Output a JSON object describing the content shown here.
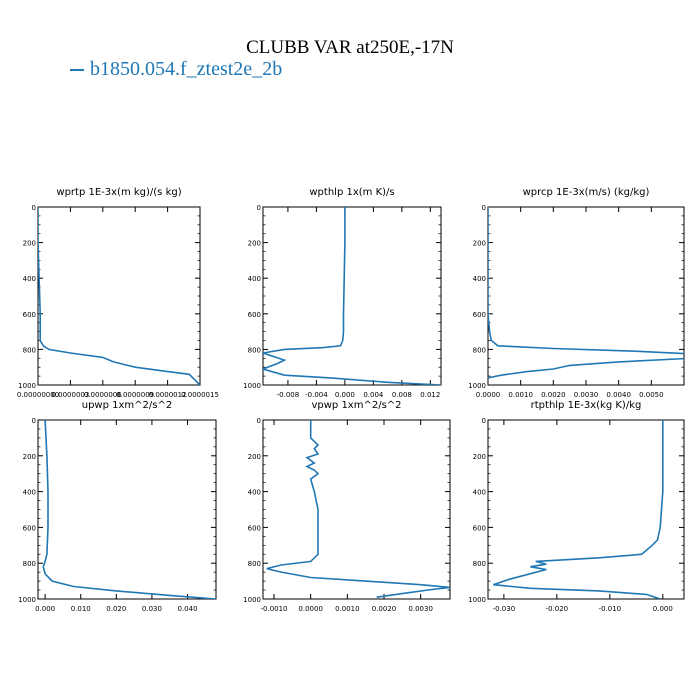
{
  "figure": {
    "title": "CLUBB VAR at250E,-17N",
    "legend_label": "b1850.054.f_ztest2e_2b",
    "series_color": "#1f77b4"
  },
  "chart_data": [
    {
      "type": "line",
      "title": "wprtp  1E-3x(m kg)/(s kg)",
      "xlim": [
        0.0,
        1.5e-06
      ],
      "ylim": [
        1000,
        0
      ],
      "yticks": [
        0,
        200,
        400,
        600,
        800,
        1000
      ],
      "xtick_labels": [
        {
          "x": 0.0,
          "label": "0.00000000"
        },
        {
          "x": 3e-07,
          "label": "0.0000003"
        },
        {
          "x": 6e-07,
          "label": "0.0000006"
        },
        {
          "x": 9e-07,
          "label": "0.0000009"
        },
        {
          "x": 1.2e-06,
          "label": "0.0000012"
        },
        {
          "x": 1.5e-06,
          "label": "0.0000015"
        }
      ],
      "series": [
        {
          "x": [
            0.0,
            0.0,
            2e-08,
            2e-08,
            5e-08,
            1e-07,
            3e-07,
            6e-07,
            7e-07,
            9e-07,
            1.2e-06,
            1.4e-06,
            1.5e-06
          ],
          "y": [
            0,
            200,
            600,
            750,
            780,
            800,
            820,
            845,
            870,
            900,
            925,
            940,
            1000
          ]
        }
      ]
    },
    {
      "type": "line",
      "title": "wpthlp  1x(m K)/s",
      "xlim": [
        -0.0115,
        0.0135
      ],
      "ylim": [
        1000,
        0
      ],
      "yticks": [
        0,
        200,
        400,
        600,
        800,
        1000
      ],
      "xtick_labels": [
        {
          "x": -0.008,
          "label": "-0.008"
        },
        {
          "x": -0.004,
          "label": "-0.004"
        },
        {
          "x": 0.0,
          "label": "0.000"
        },
        {
          "x": 0.004,
          "label": "0.004"
        },
        {
          "x": 0.008,
          "label": "0.008"
        },
        {
          "x": 0.012,
          "label": "0.012"
        }
      ],
      "series": [
        {
          "x": [
            0.0,
            0.0,
            -0.0001,
            -0.0002,
            -0.0002,
            -0.0003,
            -0.0006,
            -0.003,
            -0.0085,
            -0.0115,
            -0.0085,
            -0.0095,
            -0.0115,
            -0.0085,
            -0.002,
            0.006,
            0.0135
          ],
          "y": [
            0,
            200,
            400,
            600,
            700,
            750,
            780,
            790,
            800,
            820,
            860,
            880,
            910,
            945,
            960,
            985,
            1000
          ]
        }
      ]
    },
    {
      "type": "line",
      "title": "wprcp  1E-3x(m/s) (kg/kg)",
      "xlim": [
        0.0,
        0.006
      ],
      "ylim": [
        1000,
        0
      ],
      "yticks": [
        0,
        200,
        400,
        600,
        800,
        1000
      ],
      "xtick_labels": [
        {
          "x": 0.0,
          "label": "0.0000"
        },
        {
          "x": 0.001,
          "label": "0.0010"
        },
        {
          "x": 0.002,
          "label": "0.0020"
        },
        {
          "x": 0.003,
          "label": "0.0030"
        },
        {
          "x": 0.004,
          "label": "0.0040"
        },
        {
          "x": 0.005,
          "label": "0.0050"
        }
      ],
      "series": [
        {
          "x": [
            0.0,
            0.0,
            5e-05,
            0.0001,
            0.0003,
            0.002,
            0.0045,
            0.0062,
            0.0062,
            0.004,
            0.0025,
            0.002,
            0.0012,
            0.0004,
            0.0
          ],
          "y": [
            0,
            600,
            700,
            750,
            780,
            795,
            810,
            825,
            850,
            870,
            890,
            910,
            925,
            945,
            960
          ]
        }
      ]
    },
    {
      "type": "line",
      "title": "upwp  1xm^2/s^2",
      "xlim": [
        -0.002,
        0.048
      ],
      "ylim": [
        1000,
        0
      ],
      "yticks": [
        0,
        200,
        400,
        600,
        800,
        1000
      ],
      "xtick_labels": [
        {
          "x": 0.0,
          "label": "0.000"
        },
        {
          "x": 0.01,
          "label": "0.010"
        },
        {
          "x": 0.02,
          "label": "0.020"
        },
        {
          "x": 0.03,
          "label": "0.030"
        },
        {
          "x": 0.04,
          "label": "0.040"
        }
      ],
      "series": [
        {
          "x": [
            0.0,
            0.0005,
            0.0008,
            0.0008,
            0.0005,
            0.0,
            -0.0005,
            0.0,
            0.002,
            0.008,
            0.02,
            0.035,
            0.048
          ],
          "y": [
            0,
            200,
            400,
            600,
            750,
            790,
            820,
            860,
            900,
            930,
            955,
            980,
            1000
          ]
        }
      ]
    },
    {
      "type": "line",
      "title": "vpwp  1xm^2/s^2",
      "xlim": [
        -0.0013,
        0.0038
      ],
      "ylim": [
        1000,
        0
      ],
      "yticks": [
        0,
        200,
        400,
        600,
        800,
        1000
      ],
      "xtick_labels": [
        {
          "x": -0.001,
          "label": "-0.0010"
        },
        {
          "x": 0.0,
          "label": "0.0000"
        },
        {
          "x": 0.001,
          "label": "0.0010"
        },
        {
          "x": 0.002,
          "label": "0.0020"
        },
        {
          "x": 0.003,
          "label": "0.0030"
        }
      ],
      "series": [
        {
          "x": [
            0.0,
            0.0,
            0.0002,
            0.0001,
            0.0002,
            -0.0001,
            0.0001,
            -0.0001,
            0.0001,
            0.0002,
            0.0,
            0.0001,
            0.0002,
            0.0002,
            0.0002,
            0.0,
            -0.0008,
            -0.0012,
            -0.0008,
            0.0,
            0.0015,
            0.003,
            0.0038,
            0.0032,
            0.0025,
            0.0018
          ],
          "y": [
            0,
            100,
            140,
            160,
            190,
            210,
            240,
            260,
            280,
            300,
            330,
            400,
            500,
            600,
            750,
            790,
            810,
            830,
            850,
            880,
            900,
            920,
            935,
            950,
            970,
            990
          ]
        }
      ]
    },
    {
      "type": "line",
      "title": "rtpthlp  1E-3x(kg K)/kg",
      "xlim": [
        -0.033,
        0.004
      ],
      "ylim": [
        1000,
        0
      ],
      "yticks": [
        0,
        200,
        400,
        600,
        800,
        1000
      ],
      "xtick_labels": [
        {
          "x": -0.03,
          "label": "-0.030"
        },
        {
          "x": -0.02,
          "label": "-0.020"
        },
        {
          "x": -0.01,
          "label": "-0.010"
        },
        {
          "x": 0.0,
          "label": "0.000"
        }
      ],
      "series": [
        {
          "x": [
            0.0,
            0.0,
            -0.0005,
            -0.001,
            -0.002,
            -0.004,
            -0.012,
            -0.024,
            -0.022,
            -0.025,
            -0.022,
            -0.029,
            -0.032,
            -0.025,
            -0.012,
            -0.003,
            -0.0005
          ],
          "y": [
            0,
            400,
            600,
            670,
            700,
            750,
            770,
            790,
            805,
            820,
            835,
            890,
            920,
            940,
            955,
            975,
            1000
          ]
        }
      ]
    }
  ]
}
